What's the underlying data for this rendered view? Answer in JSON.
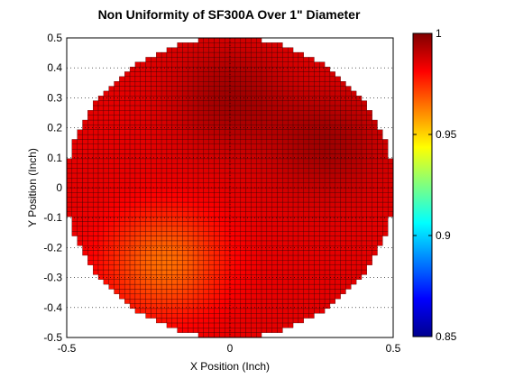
{
  "chart_data": {
    "type": "heatmap",
    "title": "Non Uniformity of SF300A Over 1\" Diameter",
    "xlabel": "X Position (Inch)",
    "ylabel": "Y Position (Inch)",
    "xlim": [
      -0.5,
      0.5
    ],
    "ylim": [
      -0.5,
      0.5
    ],
    "x_ticks": [
      "-0.5",
      "0",
      "0.5"
    ],
    "y_ticks": [
      "-0.5",
      "-0.4",
      "-0.3",
      "-0.2",
      "-0.1",
      "0",
      "0.1",
      "0.2",
      "0.3",
      "0.4",
      "0.5"
    ],
    "grid": "dotted",
    "colormap": "jet",
    "clim": [
      0.85,
      1
    ],
    "colorbar_ticks": [
      "0.85",
      "0.9",
      "0.95",
      "1"
    ],
    "region": {
      "shape": "circle",
      "diameter": 1,
      "center": [
        0,
        0
      ]
    },
    "features": [
      {
        "x": -0.2,
        "y": -0.25,
        "value": 0.965
      },
      {
        "x": 0.0,
        "y": 0.3,
        "value": 0.995
      },
      {
        "x": 0.3,
        "y": 0.15,
        "value": 0.995
      }
    ],
    "value_range": [
      0.96,
      1.0
    ]
  }
}
